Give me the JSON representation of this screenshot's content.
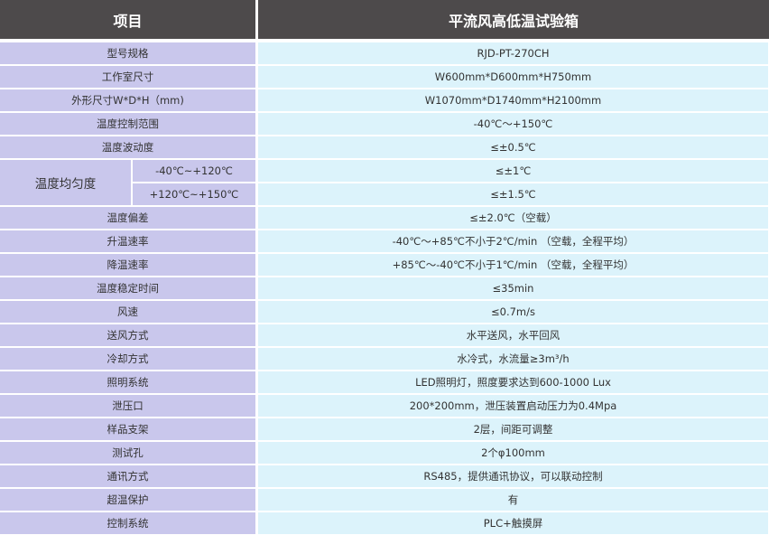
{
  "header": {
    "item": "项目",
    "product": "平流风高低温试验箱"
  },
  "rows": [
    {
      "label": "型号规格",
      "value": "RJD-PT-270CH"
    },
    {
      "label": "工作室尺寸",
      "value": "W600mm*D600mm*H750mm"
    },
    {
      "label": "外形尺寸W*D*H（mm)",
      "value": "W1070mm*D1740mm*H2100mm"
    },
    {
      "label": "温度控制范围",
      "value": "-40℃～+150℃"
    },
    {
      "label": "温度波动度",
      "value": "≤±0.5℃"
    },
    {
      "label": "温度偏差",
      "value": "≤±2.0℃（空载）"
    },
    {
      "label": "升温速率",
      "value": "-40℃～+85℃不小于2℃/min （空载，全程平均）"
    },
    {
      "label": "降温速率",
      "value": "+85℃～-40℃不小于1℃/min （空载，全程平均）"
    },
    {
      "label": "温度稳定时间",
      "value": "≤35min"
    },
    {
      "label": "风速",
      "value": "≤0.7m/s"
    },
    {
      "label": "送风方式",
      "value": "水平送风，水平回风"
    },
    {
      "label": "冷却方式",
      "value": "水冷式，水流量≥3m³/h"
    },
    {
      "label": "照明系统",
      "value": "LED照明灯，照度要求达到600-1000 Lux"
    },
    {
      "label": "泄压口",
      "value": "200*200mm，泄压装置启动压力为0.4Mpa"
    },
    {
      "label": "样品支架",
      "value": "2层，间距可调整"
    },
    {
      "label": "测试孔",
      "value": "2个φ100mm"
    },
    {
      "label": "通讯方式",
      "value": "RS485，提供通讯协议，可以联动控制"
    },
    {
      "label": "超温保护",
      "value": "有"
    },
    {
      "label": "控制系统",
      "value": "PLC+触摸屏"
    }
  ],
  "uniformity": {
    "label": "温度均匀度",
    "sub": [
      {
        "range": "-40℃~+120℃",
        "value": "≤±1℃"
      },
      {
        "range": "+120℃~+150℃",
        "value": "≤±1.5℃"
      }
    ]
  },
  "colors": {
    "header": "#4d4a4b",
    "label_bg": "#c9c7ec",
    "value_bg": "#dcf3fb"
  }
}
